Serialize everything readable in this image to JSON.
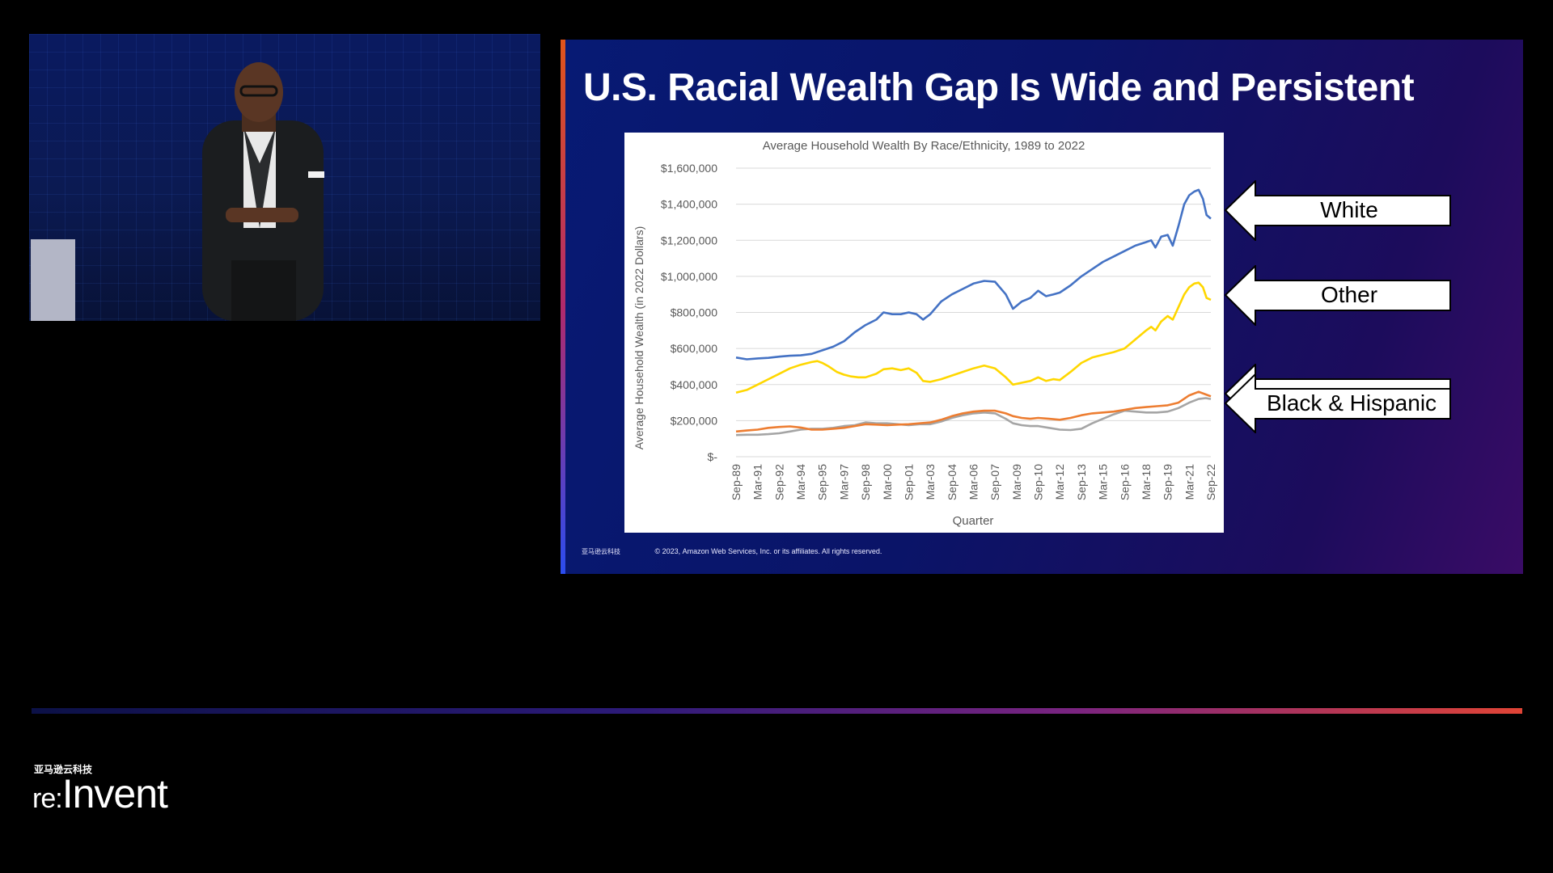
{
  "slide": {
    "title": "U.S. Racial Wealth Gap Is Wide and Persistent",
    "footer_logo": "亚马逊云科技",
    "copyright": "© 2023, Amazon Web Services, Inc. or its affiliates. All rights reserved."
  },
  "callouts": {
    "white": "White",
    "other": "Other",
    "black_hispanic": "Black & Hispanic"
  },
  "brand": {
    "cn": "亚马逊云科技",
    "re": "re:",
    "invent": "Invent",
    "bar_colors": [
      "#0c1147",
      "#2c1a78",
      "#7a2480",
      "#e04436"
    ]
  },
  "chart_data": {
    "type": "line",
    "title": "Average Household Wealth By Race/Ethnicity, 1989 to 2022",
    "xlabel": "Quarter",
    "ylabel": "Average Household Wealth (in 2022 Dollars)",
    "ylim": [
      0,
      1600000
    ],
    "yticks": [
      {
        "v": 0,
        "label": "$-"
      },
      {
        "v": 200000,
        "label": "$200,000"
      },
      {
        "v": 400000,
        "label": "$400,000"
      },
      {
        "v": 600000,
        "label": "$600,000"
      },
      {
        "v": 800000,
        "label": "$800,000"
      },
      {
        "v": 1000000,
        "label": "$1,000,000"
      },
      {
        "v": 1200000,
        "label": "$1,200,000"
      },
      {
        "v": 1400000,
        "label": "$1,400,000"
      },
      {
        "v": 1600000,
        "label": "$1,600,000"
      }
    ],
    "xrange": [
      1989.75,
      2022.75
    ],
    "xticks": [
      {
        "t": 1989.75,
        "label": "Sep-89"
      },
      {
        "t": 1991.25,
        "label": "Mar-91"
      },
      {
        "t": 1992.75,
        "label": "Sep-92"
      },
      {
        "t": 1994.25,
        "label": "Mar-94"
      },
      {
        "t": 1995.75,
        "label": "Sep-95"
      },
      {
        "t": 1997.25,
        "label": "Mar-97"
      },
      {
        "t": 1998.75,
        "label": "Sep-98"
      },
      {
        "t": 2000.25,
        "label": "Mar-00"
      },
      {
        "t": 2001.75,
        "label": "Sep-01"
      },
      {
        "t": 2003.25,
        "label": "Mar-03"
      },
      {
        "t": 2004.75,
        "label": "Sep-04"
      },
      {
        "t": 2006.25,
        "label": "Mar-06"
      },
      {
        "t": 2007.75,
        "label": "Sep-07"
      },
      {
        "t": 2009.25,
        "label": "Mar-09"
      },
      {
        "t": 2010.75,
        "label": "Sep-10"
      },
      {
        "t": 2012.25,
        "label": "Mar-12"
      },
      {
        "t": 2013.75,
        "label": "Sep-13"
      },
      {
        "t": 2015.25,
        "label": "Mar-15"
      },
      {
        "t": 2016.75,
        "label": "Sep-16"
      },
      {
        "t": 2018.25,
        "label": "Mar-18"
      },
      {
        "t": 2019.75,
        "label": "Sep-19"
      },
      {
        "t": 2021.25,
        "label": "Mar-21"
      },
      {
        "t": 2022.75,
        "label": "Sep-22"
      }
    ],
    "grid": true,
    "legend": "none",
    "series": [
      {
        "color": "#4472c4",
        "points": [
          [
            1989.75,
            550000
          ],
          [
            1990.5,
            540000
          ],
          [
            1991.25,
            545000
          ],
          [
            1992.0,
            548000
          ],
          [
            1992.75,
            555000
          ],
          [
            1993.5,
            560000
          ],
          [
            1994.25,
            562000
          ],
          [
            1995.0,
            570000
          ],
          [
            1995.75,
            590000
          ],
          [
            1996.5,
            610000
          ],
          [
            1997.25,
            640000
          ],
          [
            1998.0,
            690000
          ],
          [
            1998.75,
            730000
          ],
          [
            1999.5,
            760000
          ],
          [
            2000.0,
            800000
          ],
          [
            2000.6,
            790000
          ],
          [
            2001.2,
            790000
          ],
          [
            2001.75,
            800000
          ],
          [
            2002.3,
            790000
          ],
          [
            2002.75,
            760000
          ],
          [
            2003.25,
            790000
          ],
          [
            2004.0,
            860000
          ],
          [
            2004.75,
            900000
          ],
          [
            2005.5,
            930000
          ],
          [
            2006.25,
            960000
          ],
          [
            2007.0,
            975000
          ],
          [
            2007.75,
            970000
          ],
          [
            2008.5,
            900000
          ],
          [
            2009.0,
            820000
          ],
          [
            2009.6,
            860000
          ],
          [
            2010.2,
            880000
          ],
          [
            2010.75,
            920000
          ],
          [
            2011.3,
            890000
          ],
          [
            2011.8,
            900000
          ],
          [
            2012.25,
            910000
          ],
          [
            2013.0,
            950000
          ],
          [
            2013.75,
            1000000
          ],
          [
            2014.5,
            1040000
          ],
          [
            2015.25,
            1080000
          ],
          [
            2016.0,
            1110000
          ],
          [
            2016.75,
            1140000
          ],
          [
            2017.5,
            1170000
          ],
          [
            2018.25,
            1190000
          ],
          [
            2018.6,
            1200000
          ],
          [
            2018.9,
            1160000
          ],
          [
            2019.3,
            1220000
          ],
          [
            2019.75,
            1230000
          ],
          [
            2020.1,
            1170000
          ],
          [
            2020.5,
            1280000
          ],
          [
            2020.9,
            1400000
          ],
          [
            2021.25,
            1450000
          ],
          [
            2021.6,
            1470000
          ],
          [
            2021.9,
            1480000
          ],
          [
            2022.2,
            1430000
          ],
          [
            2022.45,
            1340000
          ],
          [
            2022.75,
            1320000
          ]
        ]
      },
      {
        "color": "#ffd700",
        "points": [
          [
            1989.75,
            355000
          ],
          [
            1990.5,
            370000
          ],
          [
            1991.25,
            400000
          ],
          [
            1992.0,
            430000
          ],
          [
            1992.75,
            460000
          ],
          [
            1993.5,
            490000
          ],
          [
            1994.25,
            510000
          ],
          [
            1995.0,
            525000
          ],
          [
            1995.4,
            530000
          ],
          [
            1995.75,
            520000
          ],
          [
            1996.2,
            500000
          ],
          [
            1996.75,
            470000
          ],
          [
            1997.25,
            455000
          ],
          [
            1997.75,
            445000
          ],
          [
            1998.25,
            440000
          ],
          [
            1998.75,
            440000
          ],
          [
            1999.5,
            460000
          ],
          [
            2000.0,
            485000
          ],
          [
            2000.6,
            490000
          ],
          [
            2001.2,
            480000
          ],
          [
            2001.75,
            490000
          ],
          [
            2002.3,
            465000
          ],
          [
            2002.75,
            420000
          ],
          [
            2003.25,
            415000
          ],
          [
            2004.0,
            430000
          ],
          [
            2004.75,
            450000
          ],
          [
            2005.5,
            470000
          ],
          [
            2006.25,
            490000
          ],
          [
            2007.0,
            505000
          ],
          [
            2007.75,
            490000
          ],
          [
            2008.5,
            440000
          ],
          [
            2009.0,
            400000
          ],
          [
            2009.6,
            410000
          ],
          [
            2010.2,
            420000
          ],
          [
            2010.75,
            440000
          ],
          [
            2011.3,
            420000
          ],
          [
            2011.8,
            430000
          ],
          [
            2012.25,
            425000
          ],
          [
            2013.0,
            470000
          ],
          [
            2013.75,
            520000
          ],
          [
            2014.5,
            550000
          ],
          [
            2015.25,
            565000
          ],
          [
            2016.0,
            580000
          ],
          [
            2016.75,
            600000
          ],
          [
            2017.5,
            650000
          ],
          [
            2018.25,
            700000
          ],
          [
            2018.6,
            720000
          ],
          [
            2018.9,
            700000
          ],
          [
            2019.3,
            750000
          ],
          [
            2019.75,
            780000
          ],
          [
            2020.1,
            760000
          ],
          [
            2020.5,
            830000
          ],
          [
            2020.9,
            900000
          ],
          [
            2021.25,
            940000
          ],
          [
            2021.6,
            960000
          ],
          [
            2021.9,
            965000
          ],
          [
            2022.2,
            940000
          ],
          [
            2022.45,
            880000
          ],
          [
            2022.75,
            870000
          ]
        ]
      },
      {
        "color": "#a5a5a5",
        "points": [
          [
            1989.75,
            120000
          ],
          [
            1990.5,
            122000
          ],
          [
            1991.25,
            122000
          ],
          [
            1992.0,
            125000
          ],
          [
            1992.75,
            130000
          ],
          [
            1993.5,
            140000
          ],
          [
            1994.25,
            150000
          ],
          [
            1995.0,
            155000
          ],
          [
            1995.75,
            155000
          ],
          [
            1996.5,
            160000
          ],
          [
            1997.25,
            170000
          ],
          [
            1998.0,
            175000
          ],
          [
            1998.75,
            190000
          ],
          [
            1999.5,
            185000
          ],
          [
            2000.25,
            185000
          ],
          [
            2001.0,
            180000
          ],
          [
            2001.75,
            175000
          ],
          [
            2002.5,
            180000
          ],
          [
            2003.25,
            180000
          ],
          [
            2004.0,
            195000
          ],
          [
            2004.75,
            215000
          ],
          [
            2005.5,
            230000
          ],
          [
            2006.25,
            240000
          ],
          [
            2007.0,
            245000
          ],
          [
            2007.75,
            240000
          ],
          [
            2008.5,
            210000
          ],
          [
            2009.0,
            185000
          ],
          [
            2009.6,
            175000
          ],
          [
            2010.2,
            170000
          ],
          [
            2010.75,
            170000
          ],
          [
            2011.5,
            160000
          ],
          [
            2012.25,
            150000
          ],
          [
            2013.0,
            148000
          ],
          [
            2013.75,
            155000
          ],
          [
            2014.5,
            185000
          ],
          [
            2015.25,
            210000
          ],
          [
            2016.0,
            235000
          ],
          [
            2016.75,
            255000
          ],
          [
            2017.5,
            250000
          ],
          [
            2018.25,
            245000
          ],
          [
            2019.0,
            245000
          ],
          [
            2019.75,
            250000
          ],
          [
            2020.5,
            270000
          ],
          [
            2021.25,
            300000
          ],
          [
            2021.9,
            320000
          ],
          [
            2022.4,
            325000
          ],
          [
            2022.75,
            320000
          ]
        ]
      },
      {
        "color": "#ed7d31",
        "points": [
          [
            1989.75,
            140000
          ],
          [
            1990.5,
            145000
          ],
          [
            1991.25,
            150000
          ],
          [
            1992.0,
            160000
          ],
          [
            1992.75,
            165000
          ],
          [
            1993.5,
            168000
          ],
          [
            1994.25,
            162000
          ],
          [
            1995.0,
            150000
          ],
          [
            1995.75,
            150000
          ],
          [
            1996.5,
            155000
          ],
          [
            1997.25,
            160000
          ],
          [
            1998.0,
            170000
          ],
          [
            1998.75,
            180000
          ],
          [
            1999.5,
            178000
          ],
          [
            2000.25,
            175000
          ],
          [
            2001.0,
            178000
          ],
          [
            2001.75,
            180000
          ],
          [
            2002.5,
            185000
          ],
          [
            2003.25,
            190000
          ],
          [
            2004.0,
            205000
          ],
          [
            2004.75,
            225000
          ],
          [
            2005.5,
            240000
          ],
          [
            2006.25,
            250000
          ],
          [
            2007.0,
            255000
          ],
          [
            2007.75,
            255000
          ],
          [
            2008.5,
            240000
          ],
          [
            2009.0,
            225000
          ],
          [
            2009.6,
            215000
          ],
          [
            2010.2,
            210000
          ],
          [
            2010.75,
            215000
          ],
          [
            2011.5,
            210000
          ],
          [
            2012.25,
            205000
          ],
          [
            2013.0,
            215000
          ],
          [
            2013.75,
            230000
          ],
          [
            2014.5,
            240000
          ],
          [
            2015.25,
            245000
          ],
          [
            2016.0,
            250000
          ],
          [
            2016.75,
            260000
          ],
          [
            2017.5,
            270000
          ],
          [
            2018.25,
            275000
          ],
          [
            2019.0,
            280000
          ],
          [
            2019.75,
            285000
          ],
          [
            2020.5,
            300000
          ],
          [
            2021.25,
            340000
          ],
          [
            2021.9,
            360000
          ],
          [
            2022.4,
            345000
          ],
          [
            2022.75,
            335000
          ]
        ]
      }
    ]
  }
}
